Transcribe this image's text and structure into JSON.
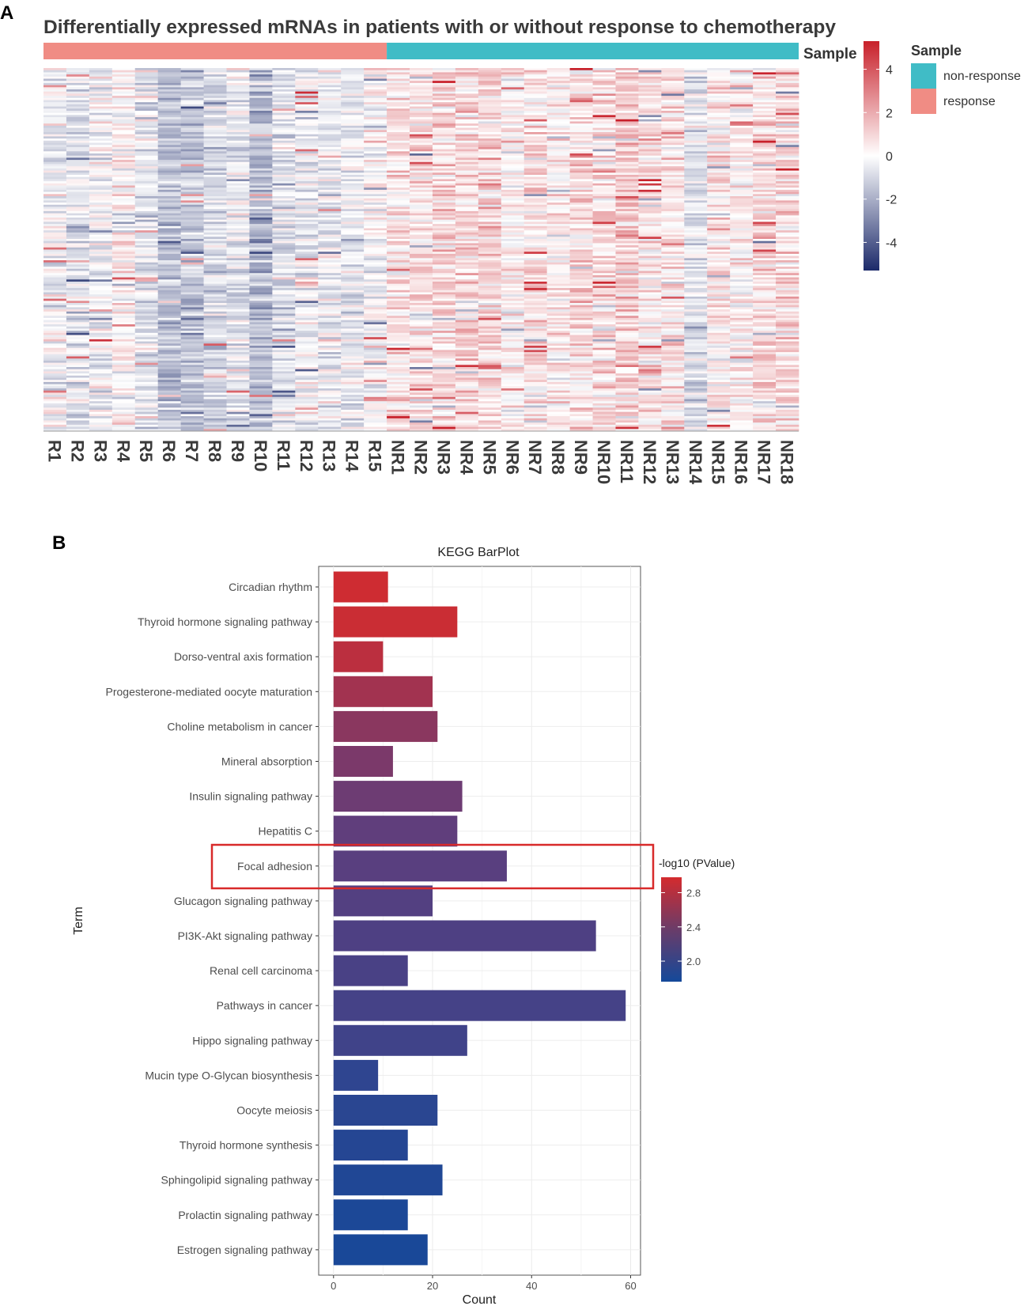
{
  "panel_a_label": "A",
  "panel_b_label": "B",
  "chart_data": [
    {
      "type": "heatmap",
      "title": "Differentially expressed mRNAs in patients with or without response to chemotherapy",
      "columns": [
        "R1",
        "R2",
        "R3",
        "R4",
        "R5",
        "R6",
        "R7",
        "R8",
        "R9",
        "R10",
        "R11",
        "R12",
        "R13",
        "R14",
        "R15",
        "NR1",
        "NR2",
        "NR3",
        "NR4",
        "NR5",
        "NR6",
        "NR7",
        "NR8",
        "NR9",
        "NR10",
        "NR11",
        "NR12",
        "NR13",
        "NR14",
        "NR15",
        "NR16",
        "NR17",
        "NR18"
      ],
      "annotation_label": "Sample",
      "groups": [
        {
          "name": "response",
          "count": 15,
          "color": "#f08c84"
        },
        {
          "name": "non-response",
          "count": 18,
          "color": "#40bcc6"
        }
      ],
      "legend_title": "Sample",
      "legend_entries": [
        {
          "label": "non-response",
          "color": "#40bcc6"
        },
        {
          "label": "response",
          "color": "#f08c84"
        }
      ],
      "color_scale": {
        "min": -5.3,
        "max": 5.3,
        "ticks": [
          4,
          2,
          0,
          -2,
          -4
        ],
        "low_color": "#1c2a6a",
        "mid_color": "#ffffff",
        "high_color": "#c8202a"
      }
    },
    {
      "type": "bar",
      "orientation": "horizontal",
      "title": "KEGG BarPlot",
      "xlabel": "Count",
      "ylabel": "Term",
      "xlim": [
        -3,
        62
      ],
      "xticks": [
        0,
        20,
        40,
        60
      ],
      "categories": [
        "Circadian rhythm",
        "Thyroid hormone signaling pathway",
        "Dorso-ventral axis formation",
        "Progesterone-mediated oocyte maturation",
        "Choline metabolism in cancer",
        "Mineral absorption",
        "Insulin signaling pathway",
        "Hepatitis C",
        "Focal adhesion",
        "Glucagon signaling pathway",
        "PI3K-Akt signaling pathway",
        "Renal cell carcinoma",
        "Pathways in cancer",
        "Hippo signaling pathway",
        "Mucin type O-Glycan biosynthesis",
        "Oocyte meiosis",
        "Thyroid hormone synthesis",
        "Sphingolipid signaling pathway",
        "Prolactin signaling pathway",
        "Estrogen signaling pathway"
      ],
      "values": [
        11,
        25,
        10,
        20,
        21,
        12,
        26,
        25,
        35,
        20,
        53,
        15,
        59,
        27,
        9,
        21,
        15,
        22,
        15,
        19
      ],
      "color_values": [
        2.95,
        2.93,
        2.85,
        2.72,
        2.6,
        2.52,
        2.45,
        2.38,
        2.33,
        2.28,
        2.24,
        2.2,
        2.16,
        2.12,
        1.98,
        1.94,
        1.9,
        1.86,
        1.83,
        1.8
      ],
      "color_legend": {
        "title": "-log10 (PValue)",
        "ticks": [
          2.8,
          2.4,
          2.0
        ],
        "range": [
          1.76,
          2.98
        ],
        "low_color": "#14499a",
        "high_color": "#d42b2e"
      },
      "highlight": "Focal adhesion",
      "highlight_color": "#d82a2a"
    }
  ]
}
